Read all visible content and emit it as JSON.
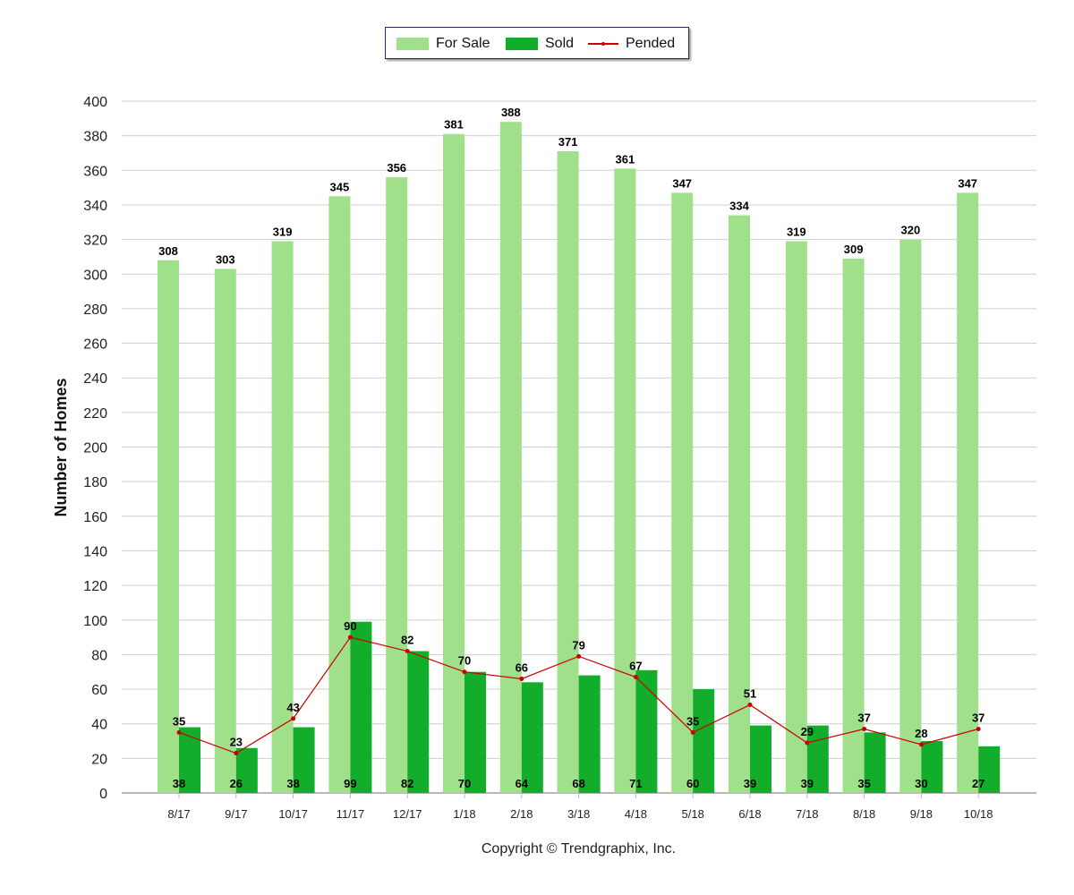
{
  "legend": {
    "for_sale": "For Sale",
    "sold": "Sold",
    "pended": "Pended"
  },
  "copyright": "Copyright © Trendgraphix, Inc.",
  "colors": {
    "for_sale": "#a0e08a",
    "sold": "#12ad2b",
    "pended": "#cc0000",
    "grid": "#cfcfcf"
  },
  "chart_data": {
    "type": "bar",
    "ylabel": "Number of Homes",
    "xlabel": "",
    "ylim": [
      0,
      400
    ],
    "yticks": [
      0,
      20,
      40,
      60,
      80,
      100,
      120,
      140,
      160,
      180,
      200,
      220,
      240,
      260,
      280,
      300,
      320,
      340,
      360,
      380,
      400
    ],
    "grid": true,
    "legend_position": "top-center",
    "categories": [
      "8/17",
      "9/17",
      "10/17",
      "11/17",
      "12/17",
      "1/18",
      "2/18",
      "3/18",
      "4/18",
      "5/18",
      "6/18",
      "7/18",
      "8/18",
      "9/18",
      "10/18"
    ],
    "series": [
      {
        "name": "For Sale",
        "kind": "bar",
        "values": [
          308,
          303,
          319,
          345,
          356,
          381,
          388,
          371,
          361,
          347,
          334,
          319,
          309,
          320,
          347
        ]
      },
      {
        "name": "Sold",
        "kind": "bar",
        "values": [
          38,
          26,
          38,
          99,
          82,
          70,
          64,
          68,
          71,
          60,
          39,
          39,
          35,
          30,
          27
        ]
      },
      {
        "name": "Pended",
        "kind": "line",
        "values": [
          35,
          23,
          43,
          90,
          82,
          70,
          66,
          79,
          67,
          35,
          51,
          29,
          37,
          28,
          37
        ]
      }
    ]
  }
}
